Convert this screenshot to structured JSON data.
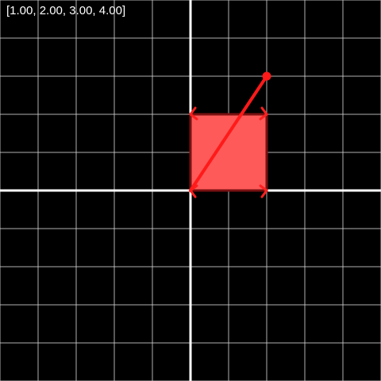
{
  "matrix_readout": "[1.00, 2.00, 3.00, 4.00]",
  "plane": {
    "grid_unit_spacing": 1,
    "x_range": [
      -5,
      5
    ],
    "y_range": [
      -5,
      5
    ],
    "grid_color": "#cfcfcf",
    "axis_color": "#ffffff",
    "background_color": "#000000"
  },
  "unit_square": {
    "corners": [
      [
        0,
        0
      ],
      [
        2,
        0
      ],
      [
        2,
        2
      ],
      [
        0,
        2
      ]
    ],
    "fill_color": "#ff5a5a",
    "stroke_color": "#7a1010"
  },
  "vector": {
    "from": [
      0,
      0
    ],
    "to": [
      2,
      3
    ],
    "color": "#ff1a1a"
  },
  "corner_handles": {
    "color": "#ff2020",
    "points": [
      [
        0,
        0
      ],
      [
        2,
        0
      ],
      [
        2,
        2
      ],
      [
        0,
        2
      ]
    ]
  }
}
